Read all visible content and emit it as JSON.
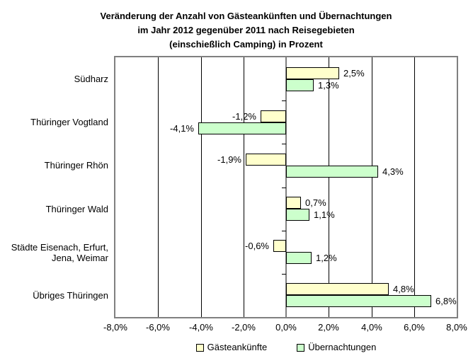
{
  "title": {
    "lines": [
      "Veränderung der Anzahl von Gästeankünften und Übernachtungen",
      "im Jahr 2012 gegenüber 2011 nach Reisegebieten",
      "(einschießlich Camping) in Prozent"
    ]
  },
  "chart_data": {
    "type": "bar",
    "orientation": "horizontal",
    "title": "Veränderung der Anzahl von Gästeankünften und Übernachtungen im Jahr 2012 gegenüber 2011 nach Reisegebieten (einschießlich Camping) in Prozent",
    "categories": [
      "Südharz",
      "Thüringer Vogtland",
      "Thüringer Rhön",
      "Thüringer Wald",
      "Städte Eisenach, Erfurt, Jena, Weimar",
      "Übriges Thüringen"
    ],
    "category_display": [
      "Südharz",
      "Thüringer Vogtland",
      "Thüringer Rhön",
      "Thüringer Wald",
      "Städte Eisenach, Erfurt,\nJena, Weimar",
      "Übriges Thüringen"
    ],
    "series": [
      {
        "name": "Gästeankünfte",
        "color": "#FFFFCC",
        "values": [
          2.5,
          -1.2,
          -1.9,
          0.7,
          -0.6,
          4.8
        ],
        "labels": [
          "2,5%",
          "-1,2%",
          "-1,9%",
          "0,7%",
          "-0,6%",
          "4,8%"
        ]
      },
      {
        "name": "Übernachtungen",
        "color": "#CCFFCC",
        "values": [
          1.3,
          -4.1,
          4.3,
          1.1,
          1.2,
          6.8
        ],
        "labels": [
          "1,3%",
          "-4,1%",
          "4,3%",
          "1,1%",
          "1,2%",
          "6,8%"
        ]
      }
    ],
    "xlim": [
      -8,
      8
    ],
    "x_ticks": [
      -8,
      -6,
      -4,
      -2,
      0,
      2,
      4,
      6,
      8
    ],
    "x_tick_labels": [
      "-8,0%",
      "-6,0%",
      "-4,0%",
      "-2,0%",
      "0,0%",
      "2,0%",
      "4,0%",
      "6,0%",
      "8,0%"
    ],
    "grid": true,
    "legend_position": "bottom"
  },
  "colors": {
    "bar_border": "#000000",
    "plot_border": "#808080",
    "zero_axis": "#808080",
    "gridline": "#000000",
    "series_1": "#FFFFCC",
    "series_2": "#CCFFCC",
    "text": "#000000",
    "background": "#FFFFFF"
  }
}
